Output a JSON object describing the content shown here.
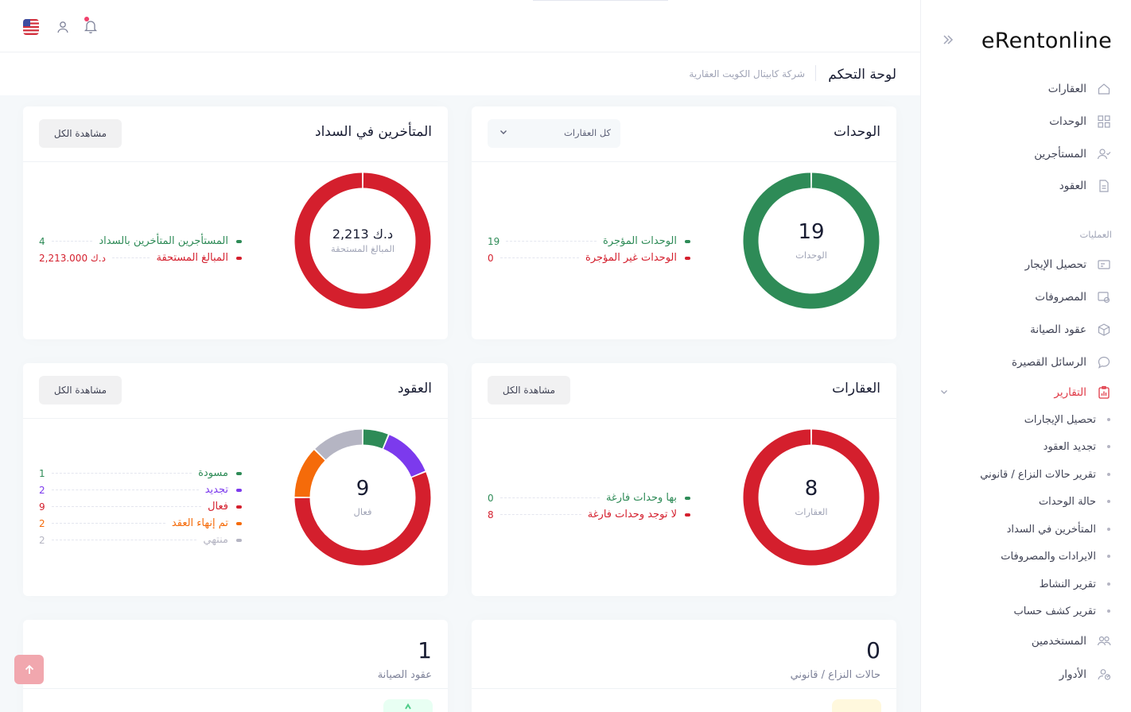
{
  "brand": {
    "name_bold": "eRent",
    "name_thin": "online"
  },
  "header": {
    "language": "English (US)",
    "title": "لوحة التحكم",
    "breadcrumb": "شركة كابيتال الكويت العقارية"
  },
  "sidebar": {
    "items": [
      {
        "label": "العقارات",
        "icon": "home-icon"
      },
      {
        "label": "الوحدات",
        "icon": "grid-icon"
      },
      {
        "label": "المستأجرين",
        "icon": "user-check-icon"
      },
      {
        "label": "العقود",
        "icon": "document-icon"
      }
    ],
    "section_label": "العمليات",
    "operations": [
      {
        "label": "تحصيل الإيجار",
        "icon": "receipt-icon"
      },
      {
        "label": "المصروفات",
        "icon": "expense-icon"
      },
      {
        "label": "عقود الصيانة",
        "icon": "box-icon"
      },
      {
        "label": "الرسائل القصيرة",
        "icon": "chat-icon"
      },
      {
        "label": "التقارير",
        "icon": "report-icon"
      }
    ],
    "reports_sub": [
      "تحصيل الإيجارات",
      "تجديد العقود",
      "تقرير حالات النزاع / قانوني",
      "حالة الوحدات",
      "المتأخرين في السداد",
      "الايرادات والمصروفات",
      "تقرير النشاط",
      "تقرير كشف حساب"
    ],
    "bottom": [
      {
        "label": "المستخدمين",
        "icon": "users-icon"
      },
      {
        "label": "الأدوار",
        "icon": "roles-icon"
      }
    ]
  },
  "units_card": {
    "title": "الوحدات",
    "filter_value": "كل العقارات",
    "center_value": "19",
    "center_label": "الوحدات",
    "legend": [
      {
        "label": "الوحدات المؤجرة",
        "value": "19",
        "color": "#2e8b57"
      },
      {
        "label": "الوحدات غير المؤجرة",
        "value": "0",
        "color": "#d41f2d"
      }
    ]
  },
  "late_card": {
    "title": "المتأخرين في السداد",
    "button": "مشاهدة الكل",
    "center_value": "2,213 د.ك",
    "center_label": "المبالغ المستحقة",
    "legend": [
      {
        "label": "المستأجرين المتأخرين بالسداد",
        "value": "4",
        "color": "#2e8b57"
      },
      {
        "label": "المبالغ المستحقة",
        "value": "2,213.000 د.ك",
        "color": "#d41f2d"
      }
    ]
  },
  "properties_card": {
    "title": "العقارات",
    "button": "مشاهدة الكل",
    "center_value": "8",
    "center_label": "العقارات",
    "legend": [
      {
        "label": "بها وحدات فارغة",
        "value": "0",
        "color": "#2e8b57"
      },
      {
        "label": "لا توجد وحدات فارغة",
        "value": "8",
        "color": "#d41f2d"
      }
    ]
  },
  "contracts_card": {
    "title": "العقود",
    "button": "مشاهدة الكل",
    "center_value": "9",
    "center_label": "فعال",
    "legend": [
      {
        "label": "مسودة",
        "value": "1",
        "color": "#2e8b57"
      },
      {
        "label": "تجديد",
        "value": "2",
        "color": "#7c3aed"
      },
      {
        "label": "فعال",
        "value": "9",
        "color": "#d41f2d"
      },
      {
        "label": "تم إنهاء العقد",
        "value": "2",
        "color": "#f56b0a"
      },
      {
        "label": "منتهي",
        "value": "2",
        "color": "#b5b5c3"
      }
    ]
  },
  "disputes_card": {
    "value": "0",
    "label": "حالات النزاع / قانوني",
    "chip_color": "#fff8dd"
  },
  "maintenance_card": {
    "value": "1",
    "label": "عقود الصيانة",
    "chip_color": "#e8fff3"
  },
  "chart_data": [
    {
      "type": "pie",
      "title": "الوحدات",
      "categories": [
        "الوحدات المؤجرة",
        "الوحدات غير المؤجرة"
      ],
      "values": [
        19,
        0
      ],
      "colors": [
        "#2e8b57",
        "#d41f2d"
      ]
    },
    {
      "type": "pie",
      "title": "المتأخرين في السداد",
      "categories": [
        "المبالغ المستحقة"
      ],
      "values": [
        2213
      ],
      "colors": [
        "#d41f2d"
      ]
    },
    {
      "type": "pie",
      "title": "العقارات",
      "categories": [
        "بها وحدات فارغة",
        "لا توجد وحدات فارغة"
      ],
      "values": [
        0,
        8
      ],
      "colors": [
        "#2e8b57",
        "#d41f2d"
      ]
    },
    {
      "type": "pie",
      "title": "العقود",
      "categories": [
        "مسودة",
        "تجديد",
        "فعال",
        "تم إنهاء العقد",
        "منتهي"
      ],
      "values": [
        1,
        2,
        9,
        2,
        2
      ],
      "colors": [
        "#2e8b57",
        "#7c3aed",
        "#d41f2d",
        "#f56b0a",
        "#b5b5c3"
      ]
    }
  ]
}
